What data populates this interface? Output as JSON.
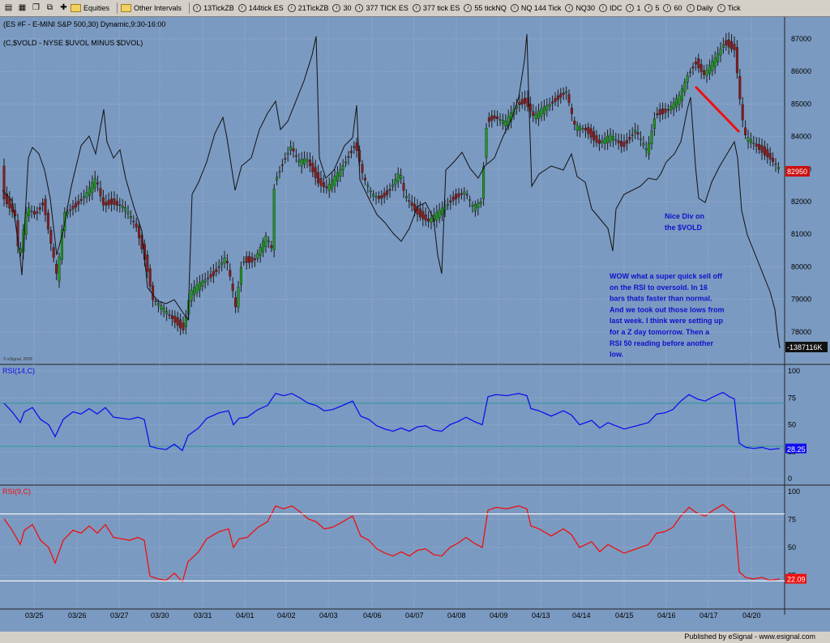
{
  "toolbar": {
    "equities": "Equities",
    "other_intervals": "Other Intervals",
    "intervals": [
      "13TickZB",
      "144tick ES",
      "21TickZB",
      "30",
      "377 TICK ES",
      "377 tick ES",
      "55 tickNQ",
      "NQ 144 Tick",
      "NQ30",
      "IDC",
      "1",
      "5",
      "60",
      "Daily",
      "Tick"
    ]
  },
  "chart": {
    "title": "(ES #F - E-MINI S&P 500,30) Dynamic,9:30-16:00",
    "overlay_label": "(C,$VOLD - NYSE $UVOL MINUS $DVOL)",
    "copyright": "© eSignal, 2009",
    "price_axis": [
      "87000",
      "86000",
      "85000",
      "84000",
      "83000",
      "82000",
      "81000",
      "80000",
      "79000",
      "78000"
    ],
    "last_price": "82950",
    "vold_last": "-1387116K",
    "annotation_div": [
      "Nice Div on",
      "the $VOLD"
    ],
    "annotation_main": [
      "WOW what a super quick sell off",
      "on the RSI to oversold. In 16",
      "bars thats faster than normal.",
      "And we took out those lows from",
      "last week. I think were setting up",
      "for a Z day tomorrow. Then a",
      "RSI 50 reading before another",
      "low."
    ],
    "rsi14_label": "RSI(14,C)",
    "rsi14_axis": [
      "100",
      "75",
      "50",
      "25",
      "0"
    ],
    "rsi14_last": "28.25",
    "rsi9_label": "RSI(9,C)",
    "rsi9_axis": [
      "100",
      "75",
      "50",
      "25"
    ],
    "rsi9_last": "22.09",
    "dates": [
      "03/25",
      "03/26",
      "03/27",
      "03/30",
      "03/31",
      "04/01",
      "04/02",
      "04/03",
      "04/06",
      "04/07",
      "04/08",
      "04/09",
      "04/13",
      "04/14",
      "04/15",
      "04/16",
      "04/17",
      "04/20"
    ],
    "colors": {
      "background": "#7b9ac1",
      "candle_up": "#1e9a1e",
      "candle_down": "#8b1a1a",
      "rsi14": "#1010ee",
      "rsi9": "#ee1010",
      "trend": "#ee1010",
      "annotation": "#1010cc"
    }
  },
  "footer": "Published by eSignal - www.esignal.com"
}
